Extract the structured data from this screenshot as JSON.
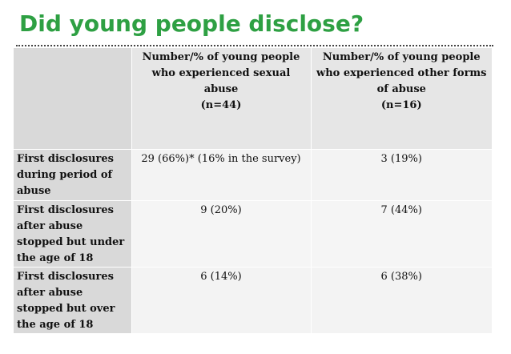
{
  "slide": {
    "title": "Did young people disclose?"
  },
  "table": {
    "columns": [
      {
        "lines": [
          "Number/% of young people",
          "who experienced sexual",
          "abuse",
          "(n=44)"
        ]
      },
      {
        "lines": [
          "Number/% of young people",
          "who experienced other forms",
          "of abuse",
          "(n=16)"
        ]
      }
    ],
    "rows": [
      {
        "label_lines": [
          "First disclosures",
          "during period of",
          "abuse"
        ],
        "values": [
          "29 (66%)* (16% in the survey)",
          "3 (19%)"
        ]
      },
      {
        "label_lines": [
          "First disclosures",
          "after abuse",
          "stopped but under",
          "the age of 18"
        ],
        "values": [
          "9 (20%)",
          "7 (44%)"
        ]
      },
      {
        "label_lines": [
          "First disclosures",
          "after abuse",
          "stopped but over",
          "the age of 18"
        ],
        "values": [
          "6 (14%)",
          "6 (38%)"
        ]
      }
    ]
  }
}
